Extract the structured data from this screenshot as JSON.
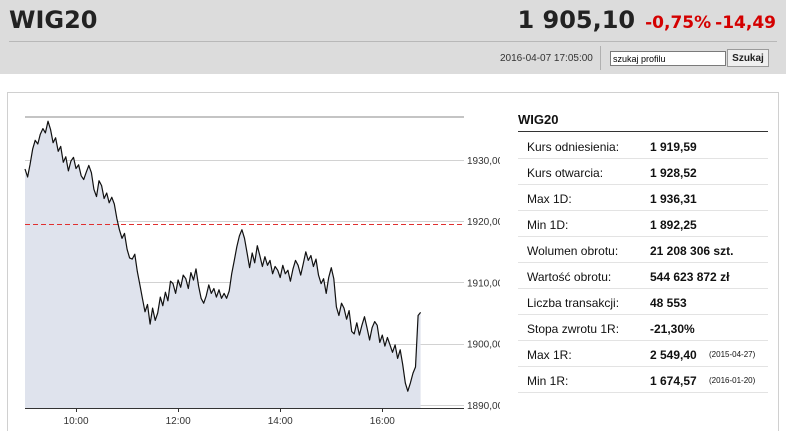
{
  "header": {
    "symbol": "WIG20",
    "price": "1 905,10",
    "change_pct": "-0,75%",
    "change_abs": "-14,49",
    "datetime": "2016-04-07 17:05:00",
    "search_value": "szukaj profilu",
    "search_button": "Szukaj"
  },
  "stats": {
    "title": "WIG20",
    "rows": [
      {
        "label": "Kurs odniesienia:",
        "value": "1 919,59"
      },
      {
        "label": "Kurs otwarcia:",
        "value": "1 928,52"
      },
      {
        "label": "Max 1D:",
        "value": "1 936,31"
      },
      {
        "label": "Min 1D:",
        "value": "1 892,25"
      },
      {
        "label": "Wolumen obrotu:",
        "value": "21 208 306 szt."
      },
      {
        "label": "Wartość obrotu:",
        "value": "544 623 872 zł"
      },
      {
        "label": "Liczba transakcji:",
        "value": "48 553"
      },
      {
        "label": "Stopa zwrotu 1R:",
        "value": "-21,30%"
      },
      {
        "label": "Max 1R:",
        "value": "2 549,40",
        "date": "(2015-04-27)"
      },
      {
        "label": "Min 1R:",
        "value": "1 674,57",
        "date": "(2016-01-20)"
      }
    ]
  },
  "colors": {
    "negative": "#d40000",
    "line": "#111111",
    "area": "#dfe3ed",
    "reference_line": "#e03030"
  },
  "chart_data": {
    "type": "area",
    "x_unit": "time of day",
    "x_ticks": [
      "10:00",
      "12:00",
      "14:00",
      "16:00"
    ],
    "x_tick_hours": [
      10,
      12,
      14,
      16
    ],
    "y_ticks": [
      1890,
      1900,
      1910,
      1920,
      1930
    ],
    "y_tick_labels": [
      "1890,00",
      "1900,00",
      "1910,00",
      "1920,00",
      "1930,00"
    ],
    "ylim": [
      1889.5,
      1937
    ],
    "xlim_hours": [
      9,
      17.6
    ],
    "reference_line": 1919.59,
    "grid": "horizontal",
    "points": [
      [
        9.0,
        1928.52
      ],
      [
        9.05,
        1927.2
      ],
      [
        9.1,
        1929.3
      ],
      [
        9.15,
        1931.8
      ],
      [
        9.2,
        1933.2
      ],
      [
        9.25,
        1932.6
      ],
      [
        9.3,
        1934.2
      ],
      [
        9.35,
        1935.1
      ],
      [
        9.4,
        1934.4
      ],
      [
        9.45,
        1936.31
      ],
      [
        9.5,
        1935.0
      ],
      [
        9.55,
        1932.8
      ],
      [
        9.6,
        1933.6
      ],
      [
        9.65,
        1931.4
      ],
      [
        9.7,
        1932.2
      ],
      [
        9.75,
        1929.6
      ],
      [
        9.8,
        1930.5
      ],
      [
        9.85,
        1928.2
      ],
      [
        9.9,
        1929.8
      ],
      [
        9.95,
        1930.4
      ],
      [
        10.0,
        1928.6
      ],
      [
        10.05,
        1929.2
      ],
      [
        10.1,
        1927.4
      ],
      [
        10.15,
        1926.8
      ],
      [
        10.2,
        1928.0
      ],
      [
        10.25,
        1929.1
      ],
      [
        10.3,
        1927.9
      ],
      [
        10.35,
        1925.2
      ],
      [
        10.4,
        1924.0
      ],
      [
        10.45,
        1926.6
      ],
      [
        10.5,
        1925.8
      ],
      [
        10.55,
        1923.7
      ],
      [
        10.6,
        1924.6
      ],
      [
        10.65,
        1923.0
      ],
      [
        10.7,
        1923.9
      ],
      [
        10.75,
        1922.8
      ],
      [
        10.8,
        1920.4
      ],
      [
        10.85,
        1918.6
      ],
      [
        10.9,
        1917.2
      ],
      [
        10.95,
        1918.0
      ],
      [
        11.0,
        1915.4
      ],
      [
        11.05,
        1914.0
      ],
      [
        11.1,
        1913.8
      ],
      [
        11.15,
        1914.6
      ],
      [
        11.2,
        1911.8
      ],
      [
        11.25,
        1909.6
      ],
      [
        11.3,
        1907.4
      ],
      [
        11.35,
        1905.2
      ],
      [
        11.4,
        1906.4
      ],
      [
        11.45,
        1903.2
      ],
      [
        11.5,
        1905.8
      ],
      [
        11.55,
        1903.8
      ],
      [
        11.6,
        1905.0
      ],
      [
        11.65,
        1907.6
      ],
      [
        11.7,
        1906.2
      ],
      [
        11.75,
        1908.4
      ],
      [
        11.8,
        1907.0
      ],
      [
        11.85,
        1910.2
      ],
      [
        11.9,
        1909.8
      ],
      [
        11.95,
        1908.2
      ],
      [
        12.0,
        1910.4
      ],
      [
        12.05,
        1909.2
      ],
      [
        12.1,
        1911.2
      ],
      [
        12.15,
        1910.6
      ],
      [
        12.2,
        1909.0
      ],
      [
        12.25,
        1911.6
      ],
      [
        12.3,
        1910.4
      ],
      [
        12.35,
        1912.2
      ],
      [
        12.4,
        1909.4
      ],
      [
        12.45,
        1907.4
      ],
      [
        12.5,
        1906.6
      ],
      [
        12.55,
        1907.8
      ],
      [
        12.6,
        1909.6
      ],
      [
        12.65,
        1908.2
      ],
      [
        12.7,
        1909.0
      ],
      [
        12.75,
        1907.6
      ],
      [
        12.8,
        1908.8
      ],
      [
        12.85,
        1907.4
      ],
      [
        12.9,
        1908.2
      ],
      [
        12.95,
        1907.4
      ],
      [
        13.0,
        1908.6
      ],
      [
        13.05,
        1911.4
      ],
      [
        13.1,
        1913.6
      ],
      [
        13.15,
        1915.8
      ],
      [
        13.2,
        1917.6
      ],
      [
        13.25,
        1918.6
      ],
      [
        13.3,
        1917.2
      ],
      [
        13.35,
        1914.8
      ],
      [
        13.4,
        1912.4
      ],
      [
        13.45,
        1914.8
      ],
      [
        13.5,
        1913.2
      ],
      [
        13.55,
        1916.0
      ],
      [
        13.6,
        1914.4
      ],
      [
        13.65,
        1912.6
      ],
      [
        13.7,
        1914.2
      ],
      [
        13.75,
        1912.8
      ],
      [
        13.8,
        1913.6
      ],
      [
        13.85,
        1911.4
      ],
      [
        13.9,
        1912.6
      ],
      [
        13.95,
        1912.0
      ],
      [
        14.0,
        1910.8
      ],
      [
        14.05,
        1912.8
      ],
      [
        14.1,
        1911.4
      ],
      [
        14.15,
        1912.0
      ],
      [
        14.2,
        1910.2
      ],
      [
        14.25,
        1912.2
      ],
      [
        14.3,
        1913.6
      ],
      [
        14.35,
        1912.8
      ],
      [
        14.4,
        1911.2
      ],
      [
        14.45,
        1913.0
      ],
      [
        14.5,
        1915.0
      ],
      [
        14.55,
        1913.6
      ],
      [
        14.6,
        1914.4
      ],
      [
        14.65,
        1912.6
      ],
      [
        14.7,
        1913.8
      ],
      [
        14.75,
        1911.2
      ],
      [
        14.8,
        1909.8
      ],
      [
        14.85,
        1910.6
      ],
      [
        14.9,
        1908.2
      ],
      [
        14.95,
        1910.8
      ],
      [
        15.0,
        1912.4
      ],
      [
        15.05,
        1910.6
      ],
      [
        15.1,
        1906.0
      ],
      [
        15.15,
        1904.6
      ],
      [
        15.2,
        1906.6
      ],
      [
        15.25,
        1905.8
      ],
      [
        15.3,
        1904.0
      ],
      [
        15.35,
        1905.4
      ],
      [
        15.4,
        1902.0
      ],
      [
        15.45,
        1901.6
      ],
      [
        15.5,
        1903.4
      ],
      [
        15.55,
        1901.4
      ],
      [
        15.6,
        1903.0
      ],
      [
        15.65,
        1904.4
      ],
      [
        15.7,
        1902.6
      ],
      [
        15.75,
        1900.6
      ],
      [
        15.8,
        1902.6
      ],
      [
        15.85,
        1903.6
      ],
      [
        15.9,
        1903.0
      ],
      [
        15.95,
        1900.2
      ],
      [
        16.0,
        1901.4
      ],
      [
        16.05,
        1899.6
      ],
      [
        16.1,
        1901.0
      ],
      [
        16.15,
        1899.8
      ],
      [
        16.2,
        1898.6
      ],
      [
        16.25,
        1899.8
      ],
      [
        16.3,
        1897.6
      ],
      [
        16.35,
        1899.0
      ],
      [
        16.4,
        1896.6
      ],
      [
        16.45,
        1893.6
      ],
      [
        16.5,
        1892.25
      ],
      [
        16.55,
        1893.6
      ],
      [
        16.6,
        1895.2
      ],
      [
        16.65,
        1896.2
      ],
      [
        16.7,
        1904.6
      ],
      [
        16.75,
        1905.1
      ]
    ]
  }
}
